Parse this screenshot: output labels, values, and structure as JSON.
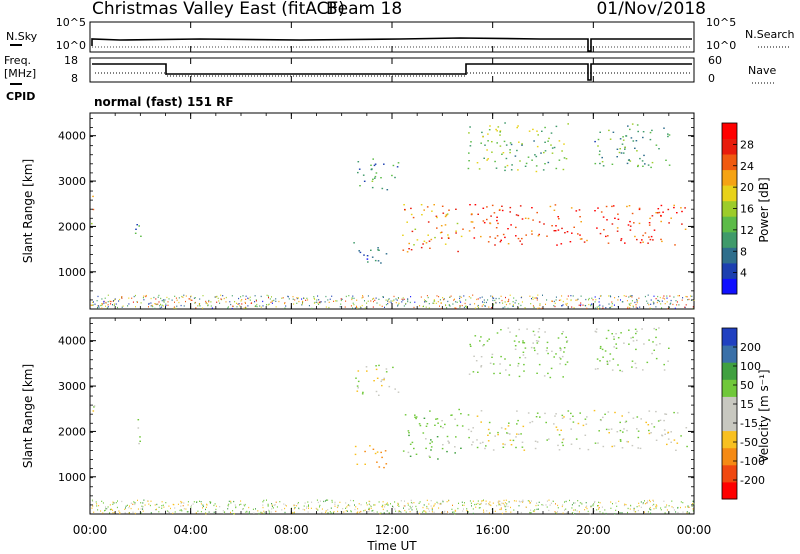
{
  "header": {
    "title": "Christmas Valley East (fitACF)",
    "beam": "Beam 18",
    "date": "01/Nov/2018"
  },
  "top_panels": {
    "nsky_label": "N.Sky",
    "nsearch_label": "N.Search",
    "noise_ticks": [
      "10^5",
      "10^0"
    ],
    "freq_label_1": "Freq.",
    "freq_label_2": "[MHz]",
    "freq_ticks": [
      "18",
      "8"
    ],
    "nave_label": "Nave",
    "nave_ticks": [
      "60",
      "0"
    ],
    "cpid_label": "CPID",
    "cpid_text": "normal (fast) 151 RF"
  },
  "x_axis": {
    "label": "Time UT",
    "ticks": [
      "00:00",
      "04:00",
      "08:00",
      "12:00",
      "16:00",
      "20:00",
      "00:00"
    ]
  },
  "chart_data": [
    {
      "type": "heatmap",
      "name": "power",
      "ylabel": "Slant Range [km]",
      "yticks": [
        "1000",
        "2000",
        "3000",
        "4000"
      ],
      "ylim": [
        180,
        4500
      ],
      "xlim_hours": [
        0,
        24
      ],
      "colorbar": {
        "label": "Power [dB]",
        "ticks": [
          "4",
          "8",
          "12",
          "16",
          "20",
          "24",
          "28"
        ],
        "colors": [
          "#1010ff",
          "#1c3fb0",
          "#2e6e8c",
          "#3f9a6a",
          "#5cbb48",
          "#9ccc2a",
          "#e8d21a",
          "#f5a314",
          "#f05a10",
          "#e81c0c",
          "#ff0000"
        ]
      },
      "regions": [
        {
          "t": [
            0.0,
            0.15
          ],
          "r": [
            1950,
            2800
          ],
          "power_db": 20
        },
        {
          "t": [
            1.7,
            2.0
          ],
          "r": [
            1650,
            2400
          ],
          "power_db": 10
        },
        {
          "t": [
            10.4,
            11.8
          ],
          "r": [
            1200,
            1700
          ],
          "power_db": 8
        },
        {
          "t": [
            10.5,
            12.3
          ],
          "r": [
            2800,
            3500
          ],
          "power_db": 10
        },
        {
          "t": [
            12.4,
            14.8
          ],
          "r": [
            1400,
            2500
          ],
          "power_db": 22
        },
        {
          "t": [
            15.0,
            19.8
          ],
          "r": [
            1600,
            2500
          ],
          "power_db": 26
        },
        {
          "t": [
            20.0,
            23.7
          ],
          "r": [
            1600,
            2500
          ],
          "power_db": 26
        },
        {
          "t": [
            15.0,
            19.0
          ],
          "r": [
            3200,
            4300
          ],
          "power_db": 14
        },
        {
          "t": [
            20.0,
            23.0
          ],
          "r": [
            3300,
            4300
          ],
          "power_db": 12
        }
      ]
    },
    {
      "type": "heatmap",
      "name": "velocity",
      "ylabel": "Slant Range [km]",
      "yticks": [
        "1000",
        "2000",
        "3000",
        "4000"
      ],
      "ylim": [
        180,
        4500
      ],
      "xlim_hours": [
        0,
        24
      ],
      "colorbar": {
        "label": "Velocity [m s⁻¹]",
        "ticks": [
          "-200",
          "-100",
          "-50",
          "-15",
          "15",
          "50",
          "100",
          "200"
        ],
        "colors": [
          "#ff0000",
          "#f04810",
          "#f58a14",
          "#f8c020",
          "#c8c8c0",
          "#c8c8c0",
          "#70c83a",
          "#40a040",
          "#3a70a8",
          "#2040c0"
        ]
      },
      "regions": [
        {
          "t": [
            0.0,
            0.15
          ],
          "r": [
            1950,
            2800
          ],
          "velocity": 0
        },
        {
          "t": [
            1.7,
            2.0
          ],
          "r": [
            1650,
            2400
          ],
          "velocity": 0
        },
        {
          "t": [
            10.4,
            11.8
          ],
          "r": [
            1200,
            1700
          ],
          "velocity": -40
        },
        {
          "t": [
            10.5,
            12.3
          ],
          "r": [
            2800,
            3500
          ],
          "velocity": 0
        },
        {
          "t": [
            12.4,
            14.8
          ],
          "r": [
            1400,
            2500
          ],
          "velocity": 30
        },
        {
          "t": [
            15.0,
            19.8
          ],
          "r": [
            1600,
            2500
          ],
          "velocity": 0
        },
        {
          "t": [
            20.0,
            23.7
          ],
          "r": [
            1600,
            2500
          ],
          "velocity": 0
        },
        {
          "t": [
            15.0,
            19.0
          ],
          "r": [
            3200,
            4300
          ],
          "velocity": 20
        },
        {
          "t": [
            20.0,
            23.0
          ],
          "r": [
            3300,
            4300
          ],
          "velocity": 20
        }
      ]
    }
  ]
}
